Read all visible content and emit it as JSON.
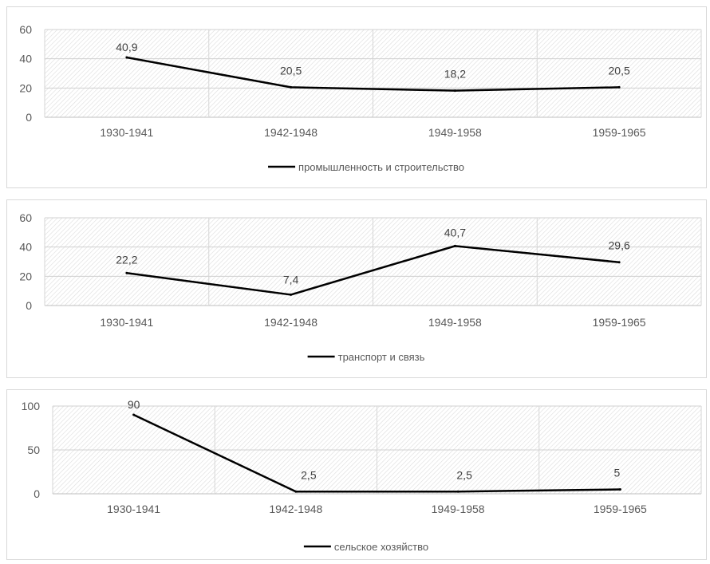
{
  "chart_data": [
    {
      "type": "line",
      "categories": [
        "1930-1941",
        "1942-1948",
        "1949-1958",
        "1959-1965"
      ],
      "series": [
        {
          "name": "промышленность и строительство",
          "values": [
            40.9,
            20.5,
            18.2,
            20.5
          ],
          "labels": [
            "40,9",
            "20,5",
            "18,2",
            "20,5"
          ]
        }
      ],
      "yticks": [
        "0",
        "20",
        "40",
        "60"
      ],
      "ylim": [
        0,
        60
      ],
      "grid": true,
      "legend": "bottom",
      "line_color": "#000000"
    },
    {
      "type": "line",
      "categories": [
        "1930-1941",
        "1942-1948",
        "1949-1958",
        "1959-1965"
      ],
      "series": [
        {
          "name": "транспорт и связь",
          "values": [
            22.2,
            7.4,
            40.7,
            29.6
          ],
          "labels": [
            "22,2",
            "7,4",
            "40,7",
            "29,6"
          ]
        }
      ],
      "yticks": [
        "0",
        "20",
        "40",
        "60"
      ],
      "ylim": [
        0,
        60
      ],
      "grid": true,
      "legend": "bottom",
      "line_color": "#000000"
    },
    {
      "type": "line",
      "categories": [
        "1930-1941",
        "1942-1948",
        "1949-1958",
        "1959-1965"
      ],
      "series": [
        {
          "name": "сельское хозяйство",
          "values": [
            90,
            2.5,
            2.5,
            5
          ],
          "labels": [
            "90",
            "2,5",
            "2,5",
            "5"
          ]
        }
      ],
      "yticks": [
        "0",
        "50",
        "100"
      ],
      "ylim": [
        0,
        100
      ],
      "grid": true,
      "legend": "bottom",
      "line_color": "#000000"
    }
  ]
}
